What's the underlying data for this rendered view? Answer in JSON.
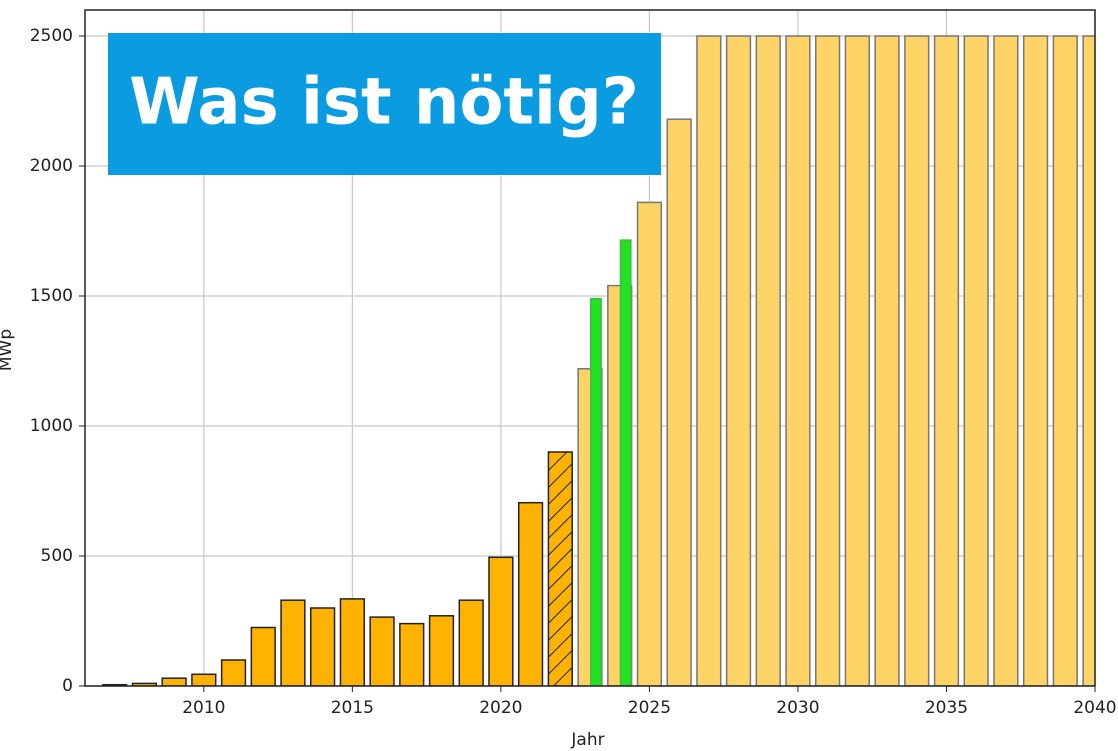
{
  "chart_data": {
    "type": "bar",
    "annotation": "Was ist nötig?",
    "xlabel": "Jahr",
    "ylabel": "MWp",
    "xlim": [
      2006,
      2040
    ],
    "ylim": [
      0,
      2600
    ],
    "xticks": [
      2010,
      2015,
      2020,
      2025,
      2030,
      2035,
      2040
    ],
    "yticks": [
      0,
      500,
      1000,
      1500,
      2000,
      2500
    ],
    "grid": true,
    "series": [
      {
        "color": "#ffb300",
        "edgecolor": "#222222",
        "bar_width": 0.8,
        "x": [
          2007,
          2008,
          2009,
          2010,
          2011,
          2012,
          2013,
          2014,
          2015,
          2016,
          2017,
          2018,
          2019,
          2020,
          2021
        ],
        "values": [
          5,
          10,
          30,
          45,
          100,
          225,
          330,
          300,
          335,
          265,
          240,
          270,
          330,
          495,
          705
        ]
      },
      {
        "color": "#ffb300",
        "edgecolor": "#222222",
        "bar_width": 0.8,
        "hatch": true,
        "x": [
          2022
        ],
        "values": [
          900
        ]
      },
      {
        "color": "#ffd466",
        "edgecolor": "#777777",
        "bar_width": 0.8,
        "x": [
          2023,
          2024,
          2025,
          2026,
          2027,
          2028,
          2029,
          2030,
          2031,
          2032,
          2033,
          2034,
          2035,
          2036,
          2037,
          2038,
          2039,
          2040
        ],
        "values": [
          1220,
          1540,
          1860,
          2180,
          2500,
          2500,
          2500,
          2500,
          2500,
          2500,
          2500,
          2500,
          2500,
          2500,
          2500,
          2500,
          2500,
          2500
        ]
      },
      {
        "color": "#22e022",
        "edgecolor": "#44bb44",
        "bar_width": 0.35,
        "x": [
          2023.2,
          2024.2
        ],
        "values": [
          1490,
          1715
        ]
      }
    ]
  }
}
